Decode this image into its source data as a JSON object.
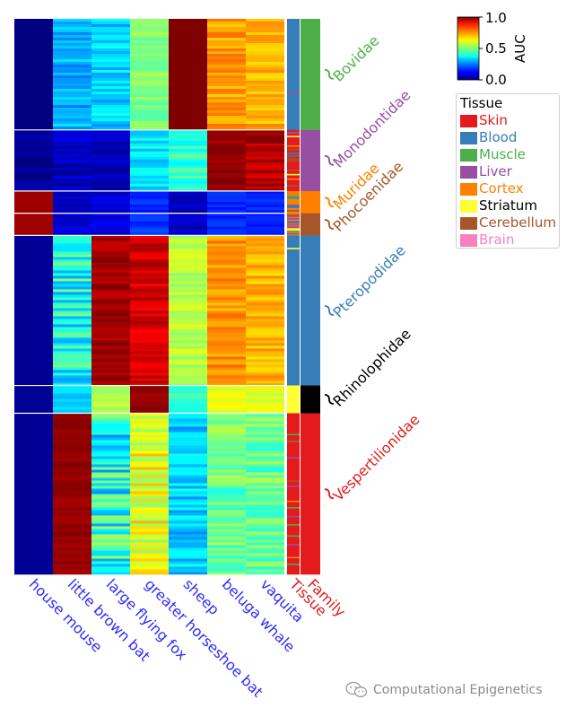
{
  "chart_data": {
    "type": "heatmap",
    "columns": [
      "house mouse",
      "little brown bat",
      "large flying fox",
      "greater horseshoe bat",
      "sheep",
      "beluga whale",
      "vaquita"
    ],
    "colorbar": {
      "label": "AUC",
      "ticks": [
        "1.0",
        "0.5",
        "0.0"
      ],
      "range": [
        0.0,
        1.0
      ],
      "colormap": "jet"
    },
    "annotation_columns": [
      "Tissue",
      "Family"
    ],
    "families": [
      {
        "name": "Bovidae",
        "color": "#4daf4a",
        "rows": 0.2
      },
      {
        "name": "Monodontidae",
        "color": "#984ea3",
        "rows": 0.11
      },
      {
        "name": "Muridae",
        "color": "#ff7f00",
        "rows": 0.04
      },
      {
        "name": "Phocoenidae",
        "color": "#a65628",
        "rows": 0.04
      },
      {
        "name": "Pteropodidae",
        "color": "#377eb8",
        "rows": 0.27
      },
      {
        "name": "Rhinolophidae",
        "color": "#000000",
        "rows": 0.05
      },
      {
        "name": "Vespertilionidae",
        "color": "#e41a1c",
        "rows": 0.29
      }
    ],
    "blocks": [
      {
        "family": "Bovidae",
        "tissue": "Blood",
        "auc": [
          0.0,
          0.3,
          0.33,
          0.5,
          1.0,
          0.72,
          0.7
        ],
        "noise": [
          0.0,
          0.06,
          0.06,
          0.05,
          0.0,
          0.05,
          0.05
        ]
      },
      {
        "family": "Monodontidae",
        "tissue": "Skin",
        "auc": [
          0.02,
          0.06,
          0.06,
          0.36,
          0.42,
          0.98,
          0.95
        ],
        "noise": [
          0.04,
          0.05,
          0.04,
          0.06,
          0.06,
          0.03,
          0.05
        ]
      },
      {
        "family": "Muridae",
        "tissue": "Cortex",
        "auc": [
          0.97,
          0.07,
          0.08,
          0.16,
          0.07,
          0.16,
          0.16
        ],
        "noise": [
          0.0,
          0.03,
          0.04,
          0.04,
          0.04,
          0.03,
          0.03
        ]
      },
      {
        "family": "Phocoenidae",
        "tissue": "Cortex",
        "auc": [
          0.97,
          0.07,
          0.09,
          0.17,
          0.06,
          0.16,
          0.16
        ],
        "noise": [
          0.0,
          0.03,
          0.04,
          0.04,
          0.04,
          0.03,
          0.03
        ]
      },
      {
        "family": "Pteropodidae",
        "tissue": "Blood",
        "auc": [
          0.02,
          0.4,
          0.97,
          0.92,
          0.55,
          0.73,
          0.7
        ],
        "noise": [
          0.0,
          0.12,
          0.04,
          0.05,
          0.05,
          0.05,
          0.05
        ]
      },
      {
        "family": "Rhinolophidae",
        "tissue": "Striatum",
        "auc": [
          0.02,
          0.32,
          0.55,
          0.98,
          0.42,
          0.6,
          0.6
        ],
        "noise": [
          0.0,
          0.04,
          0.04,
          0.02,
          0.04,
          0.04,
          0.04
        ]
      },
      {
        "family": "Vespertilionidae",
        "tissue": "Skin",
        "auc": [
          0.02,
          0.98,
          0.4,
          0.6,
          0.33,
          0.48,
          0.48
        ],
        "noise": [
          0.0,
          0.02,
          0.14,
          0.1,
          0.07,
          0.08,
          0.08
        ]
      }
    ]
  },
  "legend": {
    "title": "Tissue",
    "items": [
      {
        "label": "Skin",
        "color": "#e41a1c",
        "text_color": "#e41a1c"
      },
      {
        "label": "Blood",
        "color": "#377eb8",
        "text_color": "#377eb8"
      },
      {
        "label": "Muscle",
        "color": "#4daf4a",
        "text_color": "#4daf4a"
      },
      {
        "label": "Liver",
        "color": "#984ea3",
        "text_color": "#984ea3"
      },
      {
        "label": "Cortex",
        "color": "#ff7f00",
        "text_color": "#ff7f00"
      },
      {
        "label": "Striatum",
        "color": "#ffff33",
        "text_color": "#000000"
      },
      {
        "label": "Cerebellum",
        "color": "#a65628",
        "text_color": "#a65628"
      },
      {
        "label": "Brain",
        "color": "#f781bf",
        "text_color": "#f781bf"
      }
    ]
  },
  "watermark": {
    "text": "Computational Epigenetics"
  },
  "colors": {
    "column_label": "#2b2bff",
    "annotation_label": "#e41a1c"
  }
}
